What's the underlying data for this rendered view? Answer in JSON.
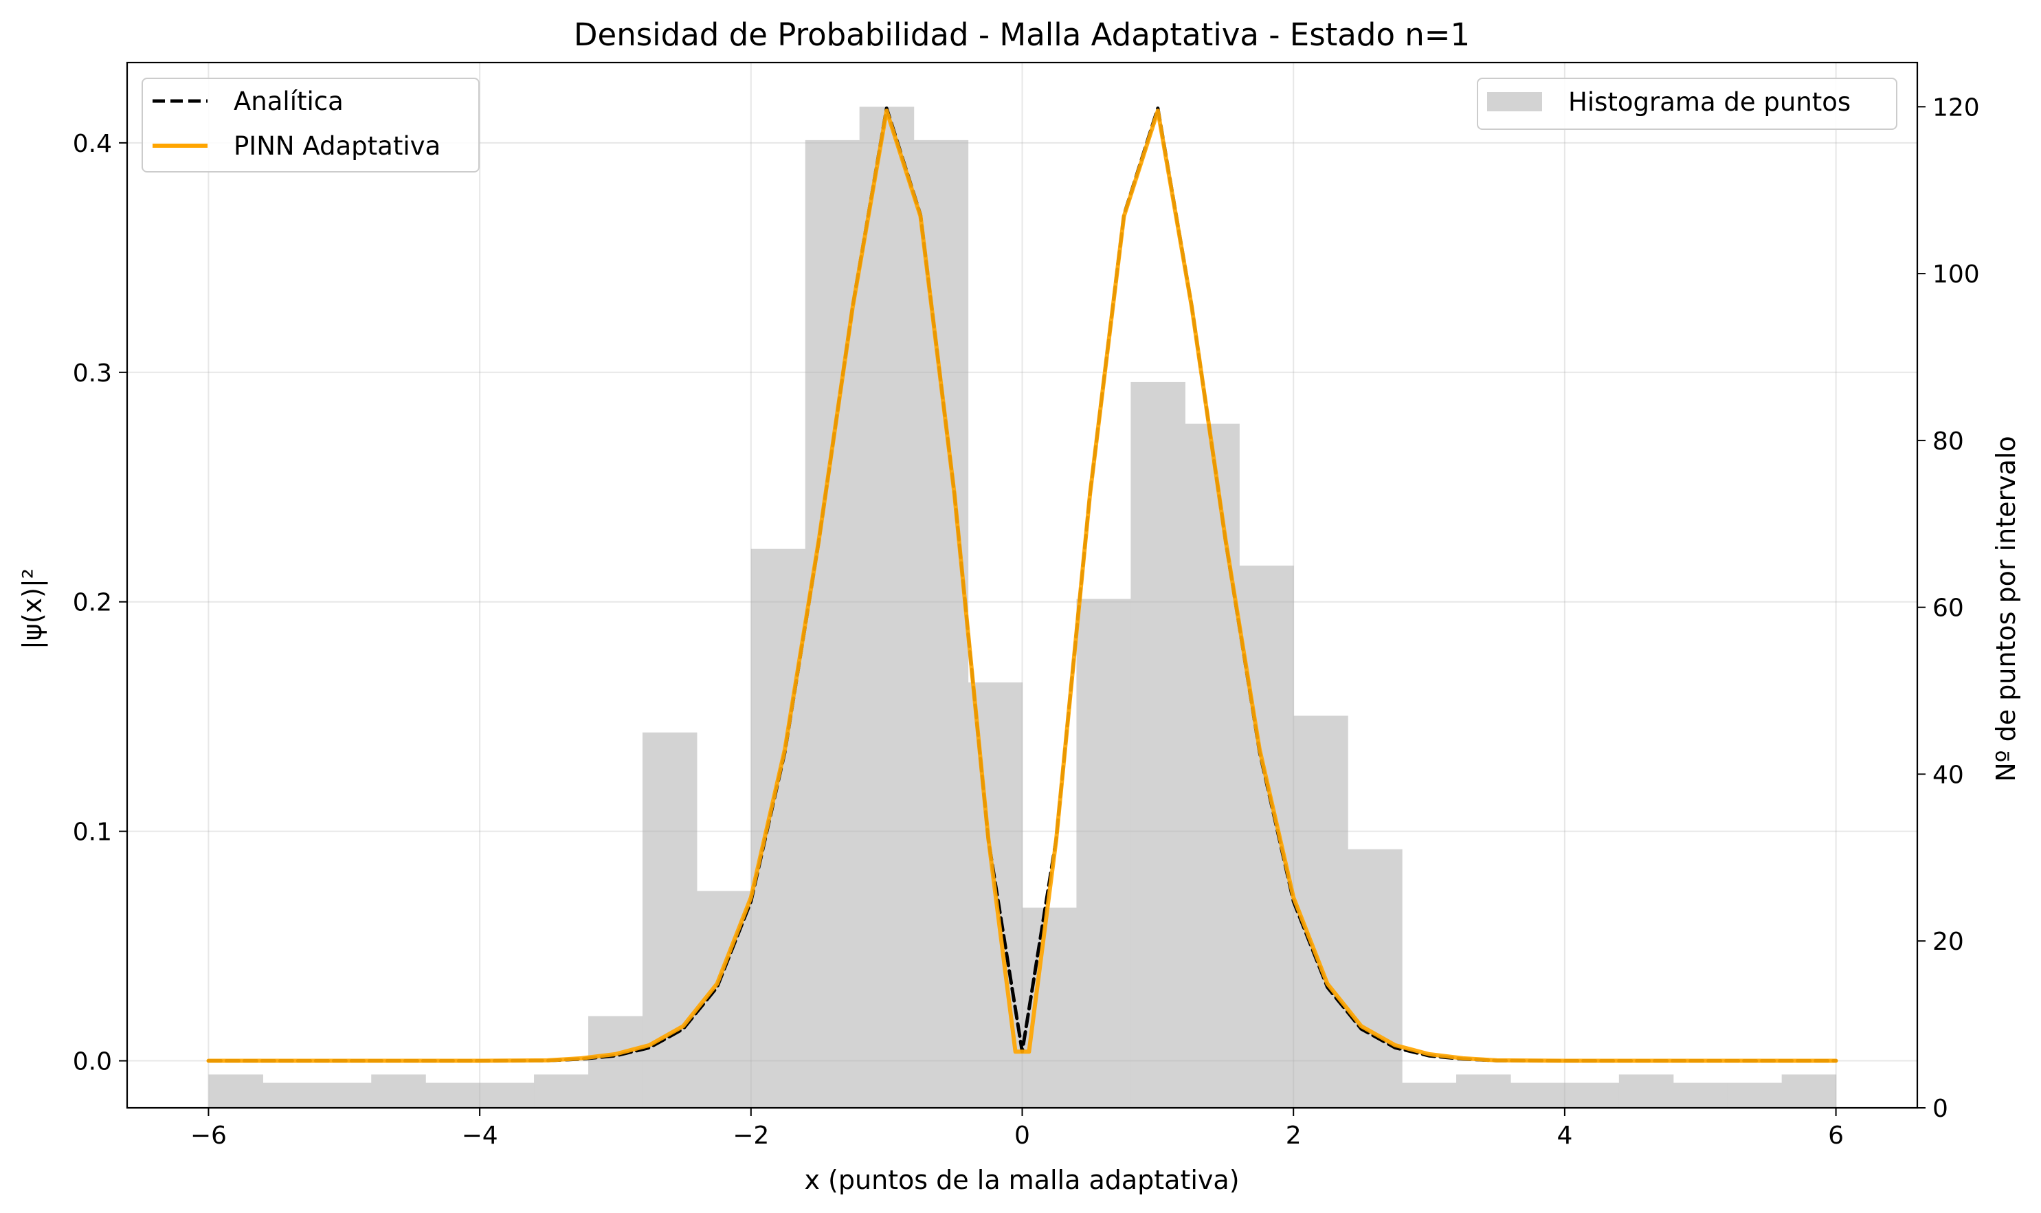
{
  "chart_data": {
    "type": "line",
    "title": "Densidad de Probabilidad - Malla Adaptativa - Estado n=1",
    "xlabel": "x (puntos de la malla adaptativa)",
    "ylabel": "|ψ(x)|²",
    "ylabel_right": "Nº de puntos por intervalo",
    "xlim": [
      -6.6,
      6.6
    ],
    "ylim": [
      -0.0205,
      0.435
    ],
    "ylim_right": [
      0,
      125.3
    ],
    "x_ticks": [
      -6,
      -4,
      -2,
      0,
      2,
      4,
      6
    ],
    "x_tick_labels": [
      "−6",
      "−4",
      "−2",
      "0",
      "2",
      "4",
      "6"
    ],
    "y_ticks": [
      0.0,
      0.1,
      0.2,
      0.3,
      0.4
    ],
    "y_tick_labels": [
      "0.0",
      "0.1",
      "0.2",
      "0.3",
      "0.4"
    ],
    "y_right_ticks": [
      0,
      20,
      40,
      60,
      80,
      100,
      120
    ],
    "y_right_tick_labels": [
      "0",
      "20",
      "40",
      "60",
      "80",
      "100",
      "120"
    ],
    "grid": true,
    "series": [
      {
        "name": "Analítica",
        "style": "dashed",
        "color": "#000000",
        "x": [
          -6.0,
          -5.5,
          -5.0,
          -4.5,
          -4.0,
          -3.5,
          -3.25,
          -3.0,
          -2.75,
          -2.5,
          -2.25,
          -2.0,
          -1.75,
          -1.5,
          -1.25,
          -1.0,
          -0.75,
          -0.5,
          -0.25,
          0.0,
          0.25,
          0.5,
          0.75,
          1.0,
          1.25,
          1.5,
          1.75,
          2.0,
          2.25,
          2.5,
          2.75,
          3.0,
          3.25,
          3.5,
          4.0,
          4.5,
          5.0,
          5.5,
          6.0
        ],
        "y": [
          0.0,
          0.0,
          0.0,
          0.0,
          0.0,
          0.0001,
          0.0008,
          0.0022,
          0.0057,
          0.0139,
          0.0321,
          0.0695,
          0.1346,
          0.2263,
          0.3289,
          0.4151,
          0.3686,
          0.2473,
          0.0964,
          0.004,
          0.0964,
          0.2473,
          0.3686,
          0.4151,
          0.3289,
          0.2263,
          0.1346,
          0.0695,
          0.0321,
          0.0139,
          0.0057,
          0.0022,
          0.0008,
          0.0001,
          0.0,
          0.0,
          0.0,
          0.0,
          0.0
        ]
      },
      {
        "name": "PINN Adaptativa",
        "style": "solid",
        "color": "#FFA500",
        "x": [
          -6.0,
          -5.5,
          -5.0,
          -4.5,
          -4.0,
          -3.5,
          -3.25,
          -3.0,
          -2.75,
          -2.5,
          -2.25,
          -2.0,
          -1.75,
          -1.5,
          -1.25,
          -1.0,
          -0.75,
          -0.5,
          -0.25,
          -0.05,
          0.05,
          0.25,
          0.5,
          0.75,
          1.0,
          1.25,
          1.5,
          1.75,
          2.0,
          2.25,
          2.5,
          2.75,
          3.0,
          3.25,
          3.5,
          4.0,
          4.5,
          5.0,
          5.5,
          6.0
        ],
        "y": [
          0.0,
          0.0,
          0.0,
          0.0,
          0.0,
          0.0002,
          0.0011,
          0.0029,
          0.0068,
          0.0151,
          0.0336,
          0.0712,
          0.1358,
          0.2268,
          0.3285,
          0.414,
          0.368,
          0.247,
          0.097,
          0.004,
          0.004,
          0.096,
          0.247,
          0.368,
          0.414,
          0.3285,
          0.2268,
          0.1358,
          0.0712,
          0.0336,
          0.0151,
          0.0068,
          0.0029,
          0.0011,
          0.0002,
          0.0,
          0.0,
          0.0,
          0.0,
          0.0
        ]
      }
    ],
    "histogram": {
      "name": "Histograma de puntos",
      "color": "#d3d3d3",
      "bin_edges": [
        -6.0,
        -5.6,
        -5.2,
        -4.8,
        -4.4,
        -4.0,
        -3.6,
        -3.2,
        -2.8,
        -2.4,
        -2.0,
        -1.6,
        -1.2,
        -0.8,
        -0.4,
        0.0,
        0.4,
        0.8,
        1.2,
        1.6,
        2.0,
        2.4,
        2.8,
        3.2,
        3.6,
        4.0,
        4.4,
        4.8,
        5.2,
        5.6,
        6.0
      ],
      "counts": [
        4,
        3,
        3,
        4,
        3,
        3,
        4,
        11,
        45,
        26,
        67,
        116,
        120,
        116,
        51,
        24,
        61,
        87,
        82,
        65,
        47,
        31,
        3,
        4,
        3,
        3,
        4,
        3,
        3,
        4
      ]
    },
    "legend_left": {
      "position": "upper left",
      "entries": [
        "Analítica",
        "PINN Adaptativa"
      ]
    },
    "legend_right": {
      "position": "upper right",
      "entries": [
        "Histograma de puntos"
      ]
    }
  }
}
